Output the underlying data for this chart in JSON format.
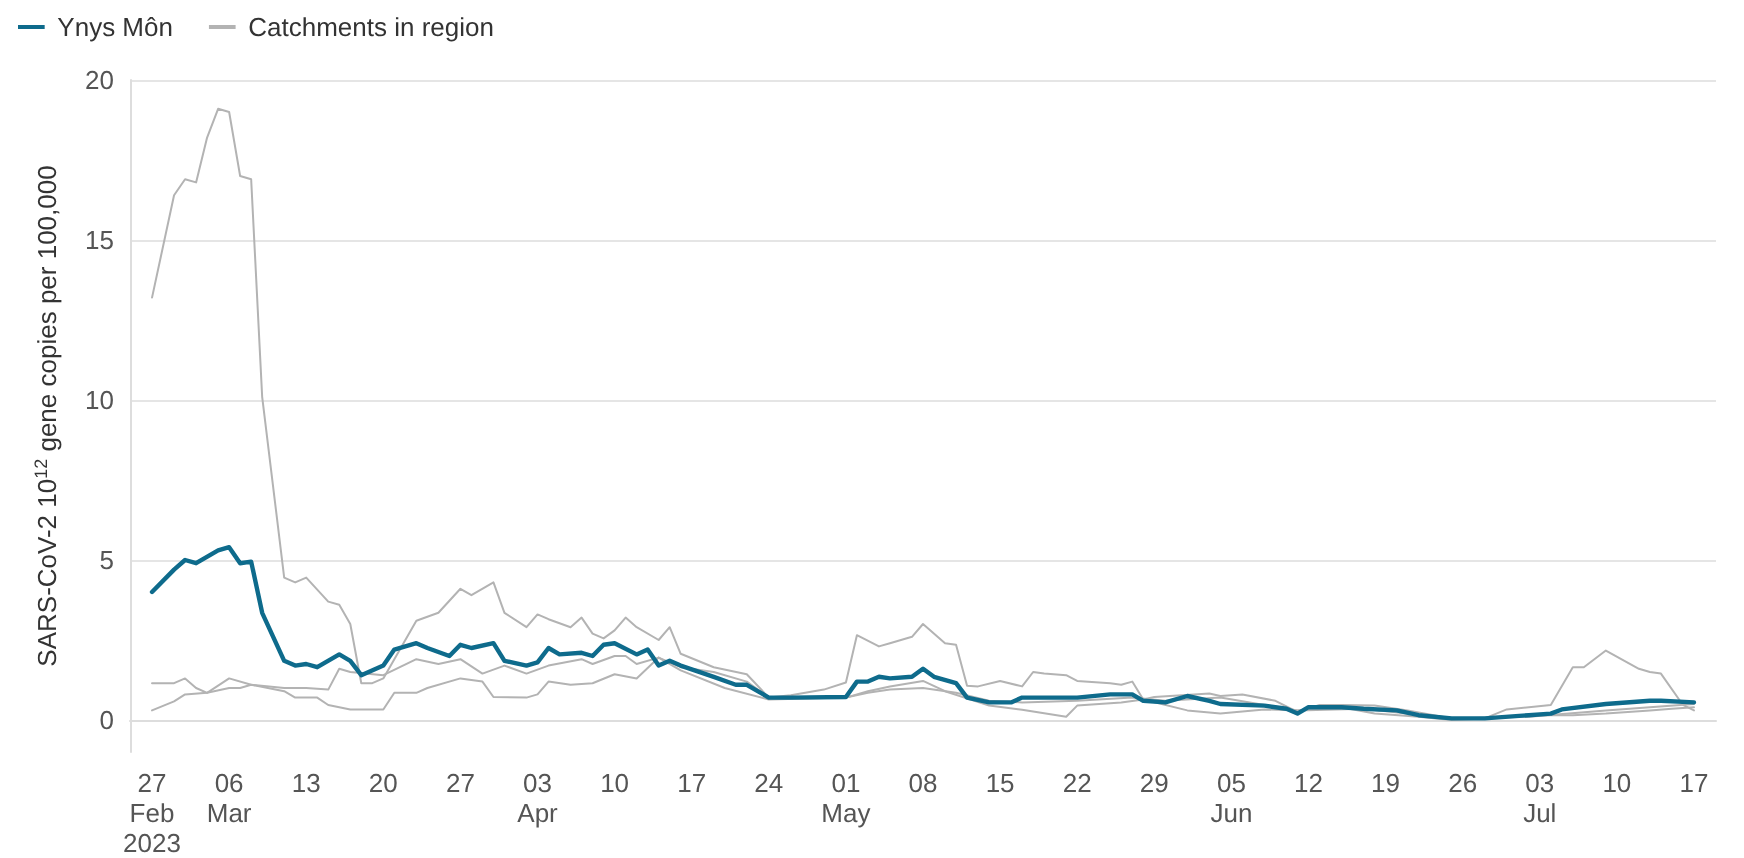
{
  "chart_data": {
    "type": "line",
    "ylabel": "SARS-CoV-2 10$^{12}$ gene copies per 100,000",
    "xlim": [
      "2023-02-25",
      "2023-07-19"
    ],
    "xticks": [
      {
        "value": "2023-02-27",
        "label": "27\nFeb\n2023"
      },
      {
        "value": "2023-03-06",
        "label": "06\nMar"
      },
      {
        "value": "2023-03-13",
        "label": "13"
      },
      {
        "value": "2023-03-20",
        "label": "20"
      },
      {
        "value": "2023-03-27",
        "label": "27"
      },
      {
        "value": "2023-04-03",
        "label": "03\nApr"
      },
      {
        "value": "2023-04-10",
        "label": "10"
      },
      {
        "value": "2023-04-17",
        "label": "17"
      },
      {
        "value": "2023-04-24",
        "label": "24"
      },
      {
        "value": "2023-05-01",
        "label": "01\nMay"
      },
      {
        "value": "2023-05-08",
        "label": "08"
      },
      {
        "value": "2023-05-15",
        "label": "15"
      },
      {
        "value": "2023-05-22",
        "label": "22"
      },
      {
        "value": "2023-05-29",
        "label": "29"
      },
      {
        "value": "2023-06-05",
        "label": "05\nJun"
      },
      {
        "value": "2023-06-12",
        "label": "12"
      },
      {
        "value": "2023-06-19",
        "label": "19"
      },
      {
        "value": "2023-06-26",
        "label": "26"
      },
      {
        "value": "2023-07-03",
        "label": "03\nJul"
      },
      {
        "value": "2023-07-10",
        "label": "10"
      },
      {
        "value": "2023-07-17",
        "label": "17"
      }
    ],
    "ylim": [
      -1,
      20
    ],
    "yticks": [
      0,
      5,
      10,
      15,
      20
    ],
    "grid": "y",
    "legend": "top left",
    "marker": "none",
    "line_style": "solid",
    "series": [
      {
        "name": "Catchments in region",
        "color": "#b3b3b3",
        "x": [
          "2023-02-27",
          "2023-03-01",
          "2023-03-02",
          "2023-03-03",
          "2023-03-04",
          "2023-03-05",
          "2023-03-06",
          "2023-03-07",
          "2023-03-08",
          "2023-03-09",
          "2023-03-11",
          "2023-03-12",
          "2023-03-13",
          "2023-03-15",
          "2023-03-16",
          "2023-03-17",
          "2023-03-18",
          "2023-03-19",
          "2023-03-20",
          "2023-03-23",
          "2023-03-25",
          "2023-03-27",
          "2023-03-28",
          "2023-03-30",
          "2023-03-31",
          "2023-04-02",
          "2023-04-03",
          "2023-04-04",
          "2023-04-06",
          "2023-04-07",
          "2023-04-08",
          "2023-04-09",
          "2023-04-10",
          "2023-04-11",
          "2023-04-12",
          "2023-04-14",
          "2023-04-15",
          "2023-04-16",
          "2023-04-19",
          "2023-04-22",
          "2023-04-24",
          "2023-04-26",
          "2023-04-29",
          "2023-05-01",
          "2023-05-02",
          "2023-05-04",
          "2023-05-05",
          "2023-05-07",
          "2023-05-08",
          "2023-05-10",
          "2023-05-11",
          "2023-05-12",
          "2023-05-13",
          "2023-05-15",
          "2023-05-17",
          "2023-05-18",
          "2023-05-19",
          "2023-05-21",
          "2023-05-22",
          "2023-05-25",
          "2023-05-26",
          "2023-05-27",
          "2023-05-28",
          "2023-05-29",
          "2023-06-03",
          "2023-06-04",
          "2023-06-06",
          "2023-06-09",
          "2023-06-11",
          "2023-06-13",
          "2023-06-15",
          "2023-06-18",
          "2023-06-21",
          "2023-06-25",
          "2023-06-28",
          "2023-06-30",
          "2023-07-04",
          "2023-07-06",
          "2023-07-07",
          "2023-07-09",
          "2023-07-12",
          "2023-07-13",
          "2023-07-14",
          "2023-07-16",
          "2023-07-17"
        ],
        "values": [
          13.2,
          16.4,
          16.9,
          16.8,
          18.2,
          19.1,
          19.0,
          17.0,
          16.9,
          10.1,
          4.45,
          4.3,
          4.45,
          3.7,
          3.6,
          3.0,
          1.15,
          1.15,
          1.3,
          3.1,
          3.35,
          4.1,
          3.9,
          4.3,
          3.35,
          2.9,
          3.3,
          3.15,
          2.9,
          3.2,
          2.7,
          2.55,
          2.8,
          3.2,
          2.9,
          2.5,
          2.9,
          2.07,
          1.65,
          1.43,
          0.7,
          0.77,
          0.95,
          1.17,
          2.65,
          2.3,
          2.4,
          2.6,
          3.0,
          2.4,
          2.35,
          1.07,
          1.05,
          1.22,
          1.05,
          1.5,
          1.45,
          1.4,
          1.22,
          1.15,
          1.1,
          1.2,
          0.64,
          0.72,
          0.83,
          0.75,
          0.8,
          0.6,
          0.25,
          0.47,
          0.47,
          0.45,
          0.3,
          0.05,
          0.05,
          0.33,
          0.47,
          1.65,
          1.65,
          2.17,
          1.6,
          1.5,
          1.45,
          0.47,
          0.3
        ]
      },
      {
        "color": "#b3b3b3",
        "x": [
          "2023-02-27",
          "2023-03-01",
          "2023-03-02",
          "2023-03-03",
          "2023-03-04",
          "2023-03-06",
          "2023-03-08",
          "2023-03-11",
          "2023-03-12",
          "2023-03-14",
          "2023-03-15",
          "2023-03-17",
          "2023-03-20",
          "2023-03-21",
          "2023-03-23",
          "2023-03-24",
          "2023-03-27",
          "2023-03-29",
          "2023-03-30",
          "2023-04-02",
          "2023-04-03",
          "2023-04-04",
          "2023-04-06",
          "2023-04-08",
          "2023-04-10",
          "2023-04-12",
          "2023-04-14",
          "2023-04-16",
          "2023-04-20",
          "2023-04-24",
          "2023-05-01",
          "2023-05-03",
          "2023-05-05",
          "2023-05-08",
          "2023-05-10",
          "2023-05-14",
          "2023-05-17",
          "2023-05-21",
          "2023-05-22",
          "2023-05-26",
          "2023-05-28",
          "2023-06-01",
          "2023-06-04",
          "2023-06-08",
          "2023-06-11",
          "2023-06-15",
          "2023-06-18",
          "2023-06-22",
          "2023-06-25",
          "2023-06-28",
          "2023-07-02",
          "2023-07-06",
          "2023-07-09",
          "2023-07-13",
          "2023-07-15",
          "2023-07-17"
        ],
        "values": [
          1.15,
          1.15,
          1.3,
          1.0,
          0.85,
          1.3,
          1.1,
          0.9,
          0.7,
          0.7,
          0.47,
          0.33,
          0.33,
          0.85,
          0.85,
          1.0,
          1.3,
          1.2,
          0.72,
          0.7,
          0.8,
          1.2,
          1.1,
          1.15,
          1.43,
          1.3,
          1.95,
          1.55,
          1.0,
          0.64,
          0.7,
          0.9,
          1.05,
          1.22,
          0.9,
          0.45,
          0.32,
          0.1,
          0.45,
          0.55,
          0.64,
          0.3,
          0.2,
          0.33,
          0.3,
          0.4,
          0.2,
          0.1,
          0,
          0.05,
          0.15,
          0.15,
          0.2,
          0.3,
          0.35,
          0.4
        ]
      },
      {
        "color": "#b3b3b3",
        "x": [
          "2023-02-27",
          "2023-03-01",
          "2023-03-02",
          "2023-03-04",
          "2023-03-06",
          "2023-03-07",
          "2023-03-08",
          "2023-03-11",
          "2023-03-13",
          "2023-03-15",
          "2023-03-16",
          "2023-03-17",
          "2023-03-20",
          "2023-03-23",
          "2023-03-25",
          "2023-03-27",
          "2023-03-29",
          "2023-03-31",
          "2023-04-02",
          "2023-04-04",
          "2023-04-07",
          "2023-04-08",
          "2023-04-10",
          "2023-04-11",
          "2023-04-12",
          "2023-04-14",
          "2023-04-16",
          "2023-04-19",
          "2023-04-22",
          "2023-04-24",
          "2023-05-01",
          "2023-05-03",
          "2023-05-05",
          "2023-05-08",
          "2023-05-11",
          "2023-05-14",
          "2023-05-17",
          "2023-05-22",
          "2023-05-27",
          "2023-05-30",
          "2023-06-04",
          "2023-06-11",
          "2023-06-17",
          "2023-06-25",
          "2023-07-02",
          "2023-07-09",
          "2023-07-17"
        ],
        "values": [
          0.3,
          0.58,
          0.8,
          0.85,
          1.0,
          1.0,
          1.1,
          1.0,
          1.0,
          0.95,
          1.6,
          1.5,
          1.4,
          1.9,
          1.75,
          1.9,
          1.45,
          1.7,
          1.45,
          1.7,
          1.9,
          1.75,
          2.0,
          2.0,
          1.75,
          1.95,
          1.65,
          1.5,
          1.2,
          0.7,
          0.7,
          0.85,
          0.95,
          1.0,
          0.85,
          0.6,
          0.55,
          0.6,
          0.7,
          0.6,
          0.7,
          0.3,
          0.35,
          0.05,
          0.1,
          0.3,
          0.5
        ]
      },
      {
        "name": "Ynys Môn",
        "color": "#0e6b8c",
        "x": [
          "2023-02-27",
          "2023-03-01",
          "2023-03-02",
          "2023-03-03",
          "2023-03-05",
          "2023-03-06",
          "2023-03-07",
          "2023-03-08",
          "2023-03-09",
          "2023-03-11",
          "2023-03-12",
          "2023-03-13",
          "2023-03-14",
          "2023-03-16",
          "2023-03-17",
          "2023-03-18",
          "2023-03-20",
          "2023-03-21",
          "2023-03-23",
          "2023-03-24",
          "2023-03-26",
          "2023-03-27",
          "2023-03-28",
          "2023-03-30",
          "2023-03-31",
          "2023-04-02",
          "2023-04-03",
          "2023-04-04",
          "2023-04-05",
          "2023-04-07",
          "2023-04-08",
          "2023-04-09",
          "2023-04-10",
          "2023-04-12",
          "2023-04-13",
          "2023-04-14",
          "2023-04-15",
          "2023-04-16",
          "2023-04-19",
          "2023-04-21",
          "2023-04-22",
          "2023-04-24",
          "2023-04-26",
          "2023-05-01",
          "2023-05-02",
          "2023-05-03",
          "2023-05-04",
          "2023-05-05",
          "2023-05-07",
          "2023-05-08",
          "2023-05-09",
          "2023-05-11",
          "2023-05-12",
          "2023-05-14",
          "2023-05-16",
          "2023-05-17",
          "2023-05-20",
          "2023-05-22",
          "2023-05-25",
          "2023-05-27",
          "2023-05-28",
          "2023-05-30",
          "2023-06-01",
          "2023-06-03",
          "2023-06-04",
          "2023-06-08",
          "2023-06-10",
          "2023-06-11",
          "2023-06-12",
          "2023-06-15",
          "2023-06-17",
          "2023-06-20",
          "2023-06-22",
          "2023-06-25",
          "2023-06-28",
          "2023-07-02",
          "2023-07-04",
          "2023-07-05",
          "2023-07-09",
          "2023-07-13",
          "2023-07-14",
          "2023-07-17"
        ],
        "values": [
          4.0,
          4.7,
          5.0,
          4.9,
          5.3,
          5.4,
          4.9,
          4.95,
          3.35,
          1.85,
          1.7,
          1.75,
          1.65,
          2.05,
          1.85,
          1.4,
          1.7,
          2.2,
          2.4,
          2.25,
          2.0,
          2.35,
          2.25,
          2.4,
          1.85,
          1.7,
          1.8,
          2.25,
          2.05,
          2.1,
          2.0,
          2.35,
          2.4,
          2.05,
          2.2,
          1.7,
          1.85,
          1.7,
          1.35,
          1.1,
          1.1,
          0.7,
          0.7,
          0.72,
          1.2,
          1.2,
          1.35,
          1.3,
          1.35,
          1.6,
          1.35,
          1.15,
          0.7,
          0.55,
          0.55,
          0.7,
          0.7,
          0.7,
          0.8,
          0.8,
          0.6,
          0.55,
          0.75,
          0.6,
          0.5,
          0.45,
          0.35,
          0.2,
          0.4,
          0.4,
          0.35,
          0.3,
          0.15,
          0.05,
          0.05,
          0.15,
          0.2,
          0.33,
          0.5,
          0.6,
          0.6,
          0.55
        ]
      }
    ]
  }
}
